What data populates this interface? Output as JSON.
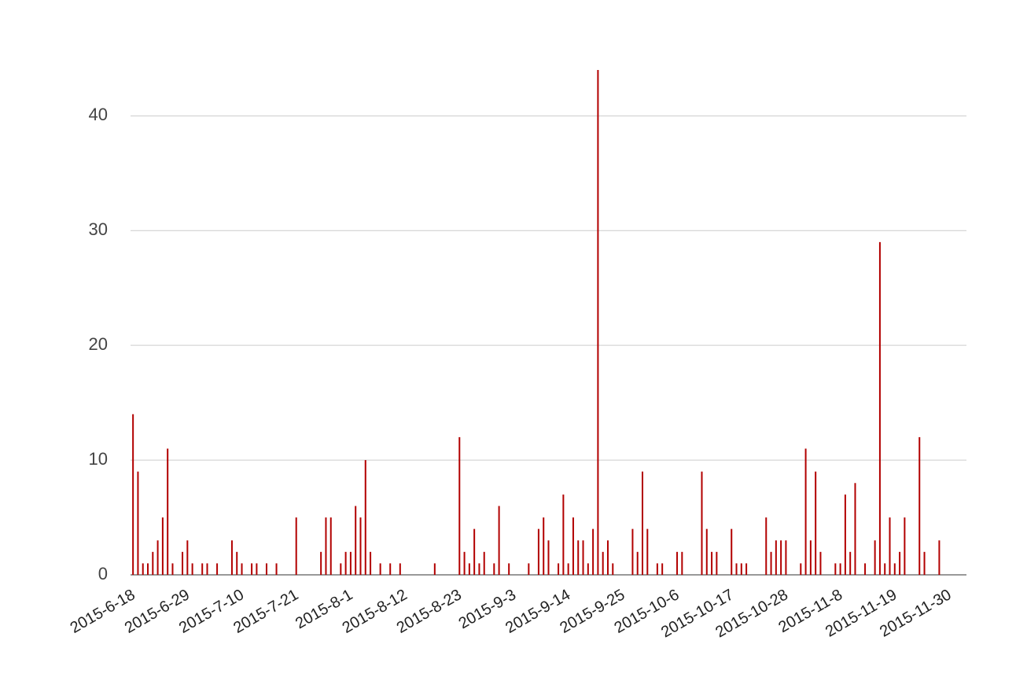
{
  "chart_data": {
    "type": "bar",
    "color": "#b20000",
    "grid": true,
    "x": [
      "2015-6-18",
      "2015-6-19",
      "2015-6-20",
      "2015-6-21",
      "2015-6-22",
      "2015-6-23",
      "2015-6-24",
      "2015-6-25",
      "2015-6-26",
      "2015-6-28",
      "2015-6-29",
      "2015-6-30",
      "2015-7-2",
      "2015-7-3",
      "2015-7-5",
      "2015-7-8",
      "2015-7-9",
      "2015-7-10",
      "2015-7-12",
      "2015-7-13",
      "2015-7-15",
      "2015-7-17",
      "2015-7-21",
      "2015-7-26",
      "2015-7-27",
      "2015-7-28",
      "2015-7-30",
      "2015-7-31",
      "2015-8-1",
      "2015-8-2",
      "2015-8-3",
      "2015-8-4",
      "2015-8-5",
      "2015-8-7",
      "2015-8-9",
      "2015-8-11",
      "2015-8-18",
      "2015-8-23",
      "2015-8-24",
      "2015-8-25",
      "2015-8-26",
      "2015-8-27",
      "2015-8-28",
      "2015-8-30",
      "2015-8-31",
      "2015-9-2",
      "2015-9-6",
      "2015-9-8",
      "2015-9-9",
      "2015-9-10",
      "2015-9-12",
      "2015-9-13",
      "2015-9-14",
      "2015-9-15",
      "2015-9-16",
      "2015-9-17",
      "2015-9-18",
      "2015-9-19",
      "2015-9-20",
      "2015-9-21",
      "2015-9-22",
      "2015-9-23",
      "2015-9-27",
      "2015-9-28",
      "2015-9-29",
      "2015-9-30",
      "2015-10-2",
      "2015-10-3",
      "2015-10-6",
      "2015-10-7",
      "2015-10-11",
      "2015-10-12",
      "2015-10-13",
      "2015-10-14",
      "2015-10-17",
      "2015-10-18",
      "2015-10-19",
      "2015-10-20",
      "2015-10-24",
      "2015-10-25",
      "2015-10-26",
      "2015-10-27",
      "2015-10-28",
      "2015-10-31",
      "2015-11-1",
      "2015-11-2",
      "2015-11-3",
      "2015-11-4",
      "2015-11-7",
      "2015-11-8",
      "2015-11-9",
      "2015-11-10",
      "2015-11-11",
      "2015-11-13",
      "2015-11-15",
      "2015-11-16",
      "2015-11-17",
      "2015-11-18",
      "2015-11-19",
      "2015-11-20",
      "2015-11-21",
      "2015-11-24",
      "2015-11-25",
      "2015-11-28"
    ],
    "values": [
      14,
      9,
      1,
      1,
      2,
      3,
      5,
      11,
      1,
      2,
      3,
      1,
      1,
      1,
      1,
      3,
      2,
      1,
      1,
      1,
      1,
      1,
      5,
      2,
      5,
      5,
      1,
      2,
      2,
      6,
      5,
      10,
      2,
      1,
      1,
      1,
      1,
      12,
      2,
      1,
      4,
      1,
      2,
      1,
      6,
      1,
      1,
      4,
      5,
      3,
      1,
      7,
      1,
      5,
      3,
      3,
      1,
      4,
      44,
      2,
      3,
      1,
      4,
      2,
      9,
      4,
      1,
      1,
      2,
      2,
      9,
      4,
      2,
      2,
      4,
      1,
      1,
      1,
      5,
      2,
      3,
      3,
      3,
      1,
      11,
      3,
      9,
      2,
      1,
      1,
      7,
      2,
      8,
      1,
      3,
      29,
      1,
      5,
      1,
      2,
      5,
      12,
      2,
      3
    ],
    "xlim": [
      "2015-6-18",
      "2015-12-3"
    ],
    "xticks": [
      "2015-6-18",
      "2015-6-29",
      "2015-7-10",
      "2015-7-21",
      "2015-8-1",
      "2015-8-12",
      "2015-8-23",
      "2015-9-3",
      "2015-9-14",
      "2015-9-25",
      "2015-10-6",
      "2015-10-17",
      "2015-10-28",
      "2015-11-8",
      "2015-11-19",
      "2015-11-30"
    ],
    "ylim": [
      0,
      44
    ],
    "yticks": [
      0,
      10,
      20,
      30,
      40
    ]
  }
}
